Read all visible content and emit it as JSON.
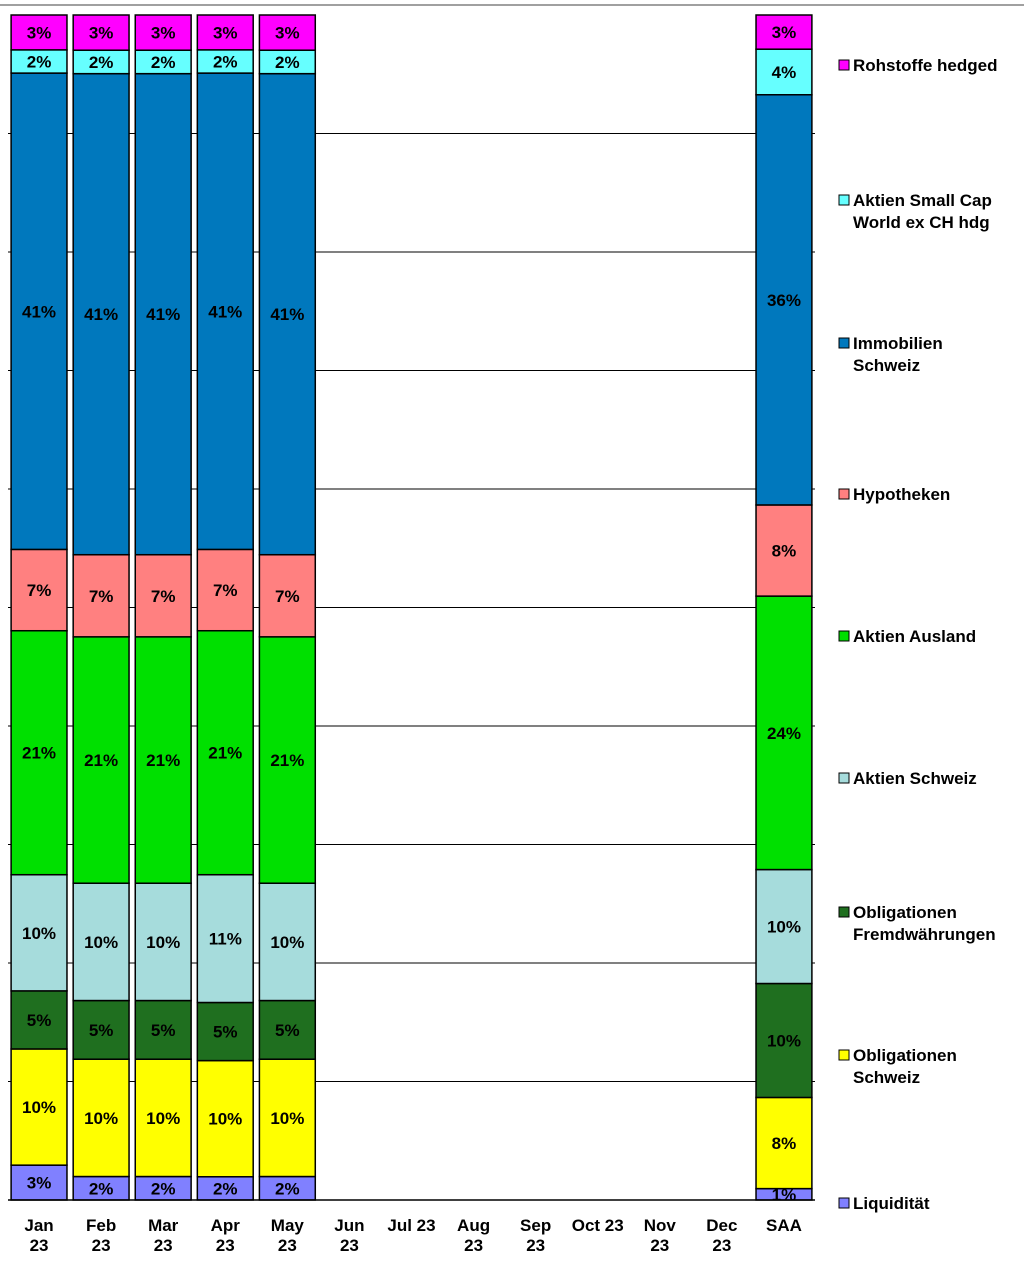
{
  "chart_data": {
    "type": "bar",
    "stacked": true,
    "percent_stacked": true,
    "categories": [
      [
        "Jan",
        "23"
      ],
      [
        "Feb",
        "23"
      ],
      [
        "Mar",
        "23"
      ],
      [
        "Apr",
        "23"
      ],
      [
        "May",
        "23"
      ],
      [
        "Jun",
        "23"
      ],
      [
        "Jul 23"
      ],
      [
        "Aug",
        "23"
      ],
      [
        "Sep",
        "23"
      ],
      [
        "Oct 23"
      ],
      [
        "Nov",
        "23"
      ],
      [
        "Dec",
        "23"
      ],
      [
        "SAA"
      ]
    ],
    "ylim": [
      0,
      100
    ],
    "grid": true,
    "legend_position": "right",
    "series": [
      {
        "name": [
          "Liquidität"
        ],
        "color": "#8080ff",
        "values": [
          3,
          2,
          2,
          2,
          2,
          null,
          null,
          null,
          null,
          null,
          null,
          null,
          1
        ],
        "labels": [
          "3%",
          "2%",
          "2%",
          "2%",
          "2%",
          "",
          "",
          "",
          "",
          "",
          "",
          "",
          "1%"
        ]
      },
      {
        "name": [
          "Obligationen",
          "Schweiz"
        ],
        "color": "#ffff00",
        "values": [
          10,
          10,
          10,
          10,
          10,
          null,
          null,
          null,
          null,
          null,
          null,
          null,
          8
        ],
        "labels": [
          "10%",
          "10%",
          "10%",
          "10%",
          "10%",
          "",
          "",
          "",
          "",
          "",
          "",
          "",
          "8%"
        ]
      },
      {
        "name": [
          "Obligationen",
          "Fremdwährungen"
        ],
        "color": "#1f6f1f",
        "values": [
          5,
          5,
          5,
          5,
          5,
          null,
          null,
          null,
          null,
          null,
          null,
          null,
          10
        ],
        "labels": [
          "5%",
          "5%",
          "5%",
          "5%",
          "5%",
          "",
          "",
          "",
          "",
          "",
          "",
          "",
          "10%"
        ]
      },
      {
        "name": [
          "Aktien Schweiz"
        ],
        "color": "#a6dcdc",
        "values": [
          10,
          10,
          10,
          11,
          10,
          null,
          null,
          null,
          null,
          null,
          null,
          null,
          10
        ],
        "labels": [
          "10%",
          "10%",
          "10%",
          "11%",
          "10%",
          "",
          "",
          "",
          "",
          "",
          "",
          "",
          "10%"
        ]
      },
      {
        "name": [
          "Aktien Ausland"
        ],
        "color": "#00e000",
        "values": [
          21,
          21,
          21,
          21,
          21,
          null,
          null,
          null,
          null,
          null,
          null,
          null,
          24
        ],
        "labels": [
          "21%",
          "21%",
          "21%",
          "21%",
          "21%",
          "",
          "",
          "",
          "",
          "",
          "",
          "",
          "24%"
        ]
      },
      {
        "name": [
          "Hypotheken"
        ],
        "color": "#ff8080",
        "values": [
          7,
          7,
          7,
          7,
          7,
          null,
          null,
          null,
          null,
          null,
          null,
          null,
          8
        ],
        "labels": [
          "7%",
          "7%",
          "7%",
          "7%",
          "7%",
          "",
          "",
          "",
          "",
          "",
          "",
          "",
          "8%"
        ]
      },
      {
        "name": [
          "Immobilien",
          "Schweiz"
        ],
        "color": "#0078bd",
        "values": [
          41,
          41,
          41,
          41,
          41,
          null,
          null,
          null,
          null,
          null,
          null,
          null,
          36
        ],
        "labels": [
          "41%",
          "41%",
          "41%",
          "41%",
          "41%",
          "",
          "",
          "",
          "",
          "",
          "",
          "",
          "36%"
        ]
      },
      {
        "name": [
          "Aktien Small Cap",
          "World ex CH hdg"
        ],
        "color": "#66ffff",
        "values": [
          2,
          2,
          2,
          2,
          2,
          null,
          null,
          null,
          null,
          null,
          null,
          null,
          4
        ],
        "labels": [
          "2%",
          "2%",
          "2%",
          "2%",
          "2%",
          "",
          "",
          "",
          "",
          "",
          "",
          "",
          "4%"
        ]
      },
      {
        "name": [
          "Rohstoffe hedged"
        ],
        "color": "#ff00ff",
        "values": [
          3,
          3,
          3,
          3,
          3,
          null,
          null,
          null,
          null,
          null,
          null,
          null,
          3
        ],
        "labels": [
          "3%",
          "3%",
          "3%",
          "3%",
          "3%",
          "",
          "",
          "",
          "",
          "",
          "",
          "",
          "3%"
        ]
      }
    ]
  }
}
